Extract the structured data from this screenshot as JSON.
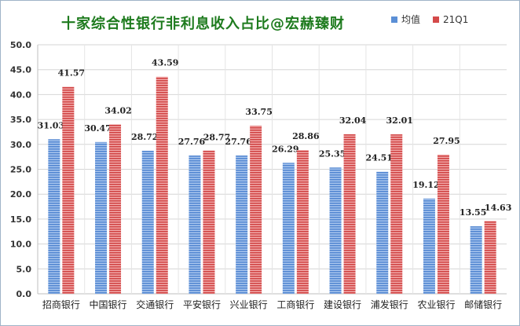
{
  "chart_data": {
    "type": "bar",
    "title": "十家综合性银行非利息收入占比@宏赫臻财",
    "categories": [
      "招商银行",
      "中国银行",
      "交通银行",
      "平安银行",
      "兴业银行",
      "工商银行",
      "建设银行",
      "浦发银行",
      "农业银行",
      "邮储银行"
    ],
    "series": [
      {
        "name": "均值",
        "color": "#5b8fd6",
        "values": [
          31.03,
          30.47,
          28.72,
          27.76,
          27.76,
          26.29,
          25.35,
          24.51,
          19.12,
          13.55
        ]
      },
      {
        "name": "21Q1",
        "color": "#d44a4a",
        "values": [
          41.57,
          34.02,
          43.59,
          28.77,
          33.75,
          28.86,
          32.04,
          32.01,
          27.95,
          14.63
        ]
      }
    ],
    "ylim": [
      0,
      50
    ],
    "yticks": [
      "0.0",
      "5.0",
      "10.0",
      "15.0",
      "20.0",
      "25.0",
      "30.0",
      "35.0",
      "40.0",
      "45.0",
      "50.0"
    ],
    "grid": true,
    "legend": "top-right"
  }
}
